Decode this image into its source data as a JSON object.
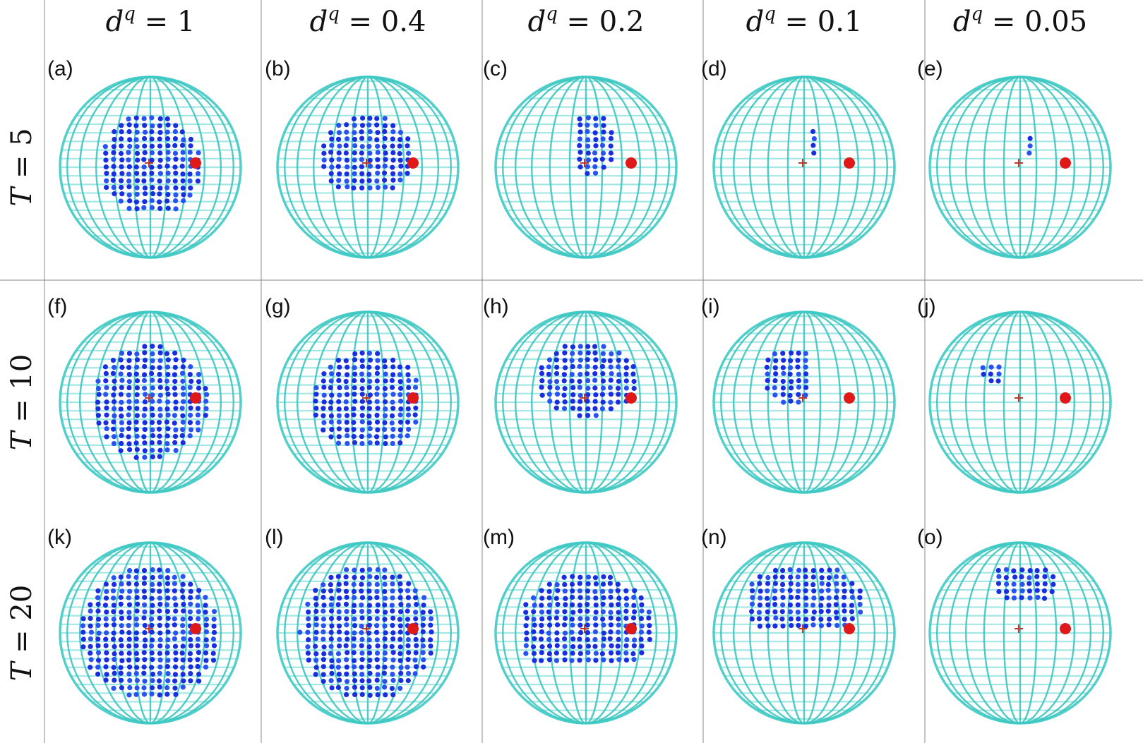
{
  "column_labels": [
    "d^q = 1",
    "d^q = 0.4",
    "d^q = 0.2",
    "d^q = 0.1",
    "d^q = 0.05"
  ],
  "column_values": [
    "1",
    "0.4",
    "0.2",
    "0.1",
    "0.05"
  ],
  "row_labels": [
    "T = 5",
    "T = 10",
    "T = 20"
  ],
  "row_values": [
    "5",
    "10",
    "20"
  ],
  "panel_labels": [
    "(a)",
    "(b)",
    "(c)",
    "(d)",
    "(e)",
    "(f)",
    "(g)",
    "(h)",
    "(i)",
    "(j)",
    "(k)",
    "(l)",
    "(m)",
    "(n)",
    "(o)"
  ],
  "colors": {
    "sphere_grid": "#3fcac4",
    "reachable_points": "#1a2ee0",
    "target_point": "#e01818",
    "origin_marker": "#c0392b",
    "divider": "#888888"
  },
  "icons": {
    "sphere": "wireframe-sphere-icon",
    "target": "red-dot-icon",
    "origin": "plus-marker-icon"
  }
}
